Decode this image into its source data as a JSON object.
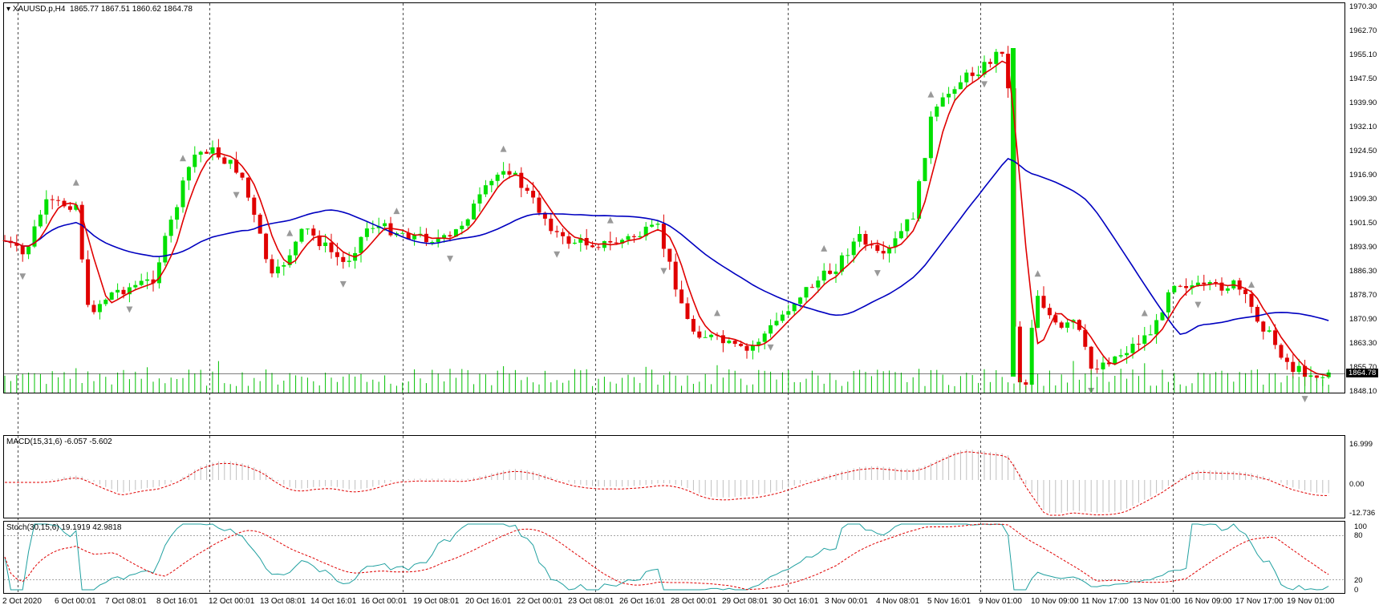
{
  "main_panel": {
    "symbol": "XAUUSD.p,H4",
    "ohlc": "1865.77 1867.51 1860.62 1864.78",
    "price_levels": [
      "1970.30",
      "1962.70",
      "1955.10",
      "1947.50",
      "1939.90",
      "1932.10",
      "1924.50",
      "1916.90",
      "1909.30",
      "1901.50",
      "1893.90",
      "1886.30",
      "1878.70",
      "1870.90",
      "1863.30",
      "1855.70",
      "1848.10"
    ],
    "current_price": "1864.78"
  },
  "macd_panel": {
    "label": "MACD(15,31,6) -6.057 -5.602",
    "levels": [
      "16.999",
      "0.00",
      "-12.736"
    ]
  },
  "stoch_panel": {
    "label": "Stoch(30,15,6) 19.1919 42.9818",
    "levels": [
      "100",
      "80",
      "20",
      "0"
    ]
  },
  "time_axis": [
    "2 Oct 2020",
    "6 Oct 00:01",
    "7 Oct 08:01",
    "8 Oct 16:01",
    "12 Oct 00:01",
    "13 Oct 08:01",
    "14 Oct 16:01",
    "16 Oct 00:01",
    "19 Oct 08:01",
    "20 Oct 16:01",
    "22 Oct 00:01",
    "23 Oct 08:01",
    "26 Oct 16:01",
    "28 Oct 00:01",
    "29 Oct 08:01",
    "30 Oct 16:01",
    "3 Nov 00:01",
    "4 Nov 08:01",
    "5 Nov 16:01",
    "9 Nov 01:00",
    "10 Nov 09:00",
    "11 Nov 17:00",
    "13 Nov 01:00",
    "16 Nov 09:00",
    "17 Nov 17:00",
    "19 Nov 01:00"
  ],
  "colors": {
    "bull": "#00e000",
    "bear": "#e00000",
    "ma_fast": "#e00000",
    "ma_slow": "#0000c0",
    "macd_hist": "#c0c0c0",
    "signal": "#e00000",
    "stoch_main": "#20a0a0",
    "grid": "#000000"
  },
  "icons": {
    "menu": "triangle-down-icon"
  }
}
